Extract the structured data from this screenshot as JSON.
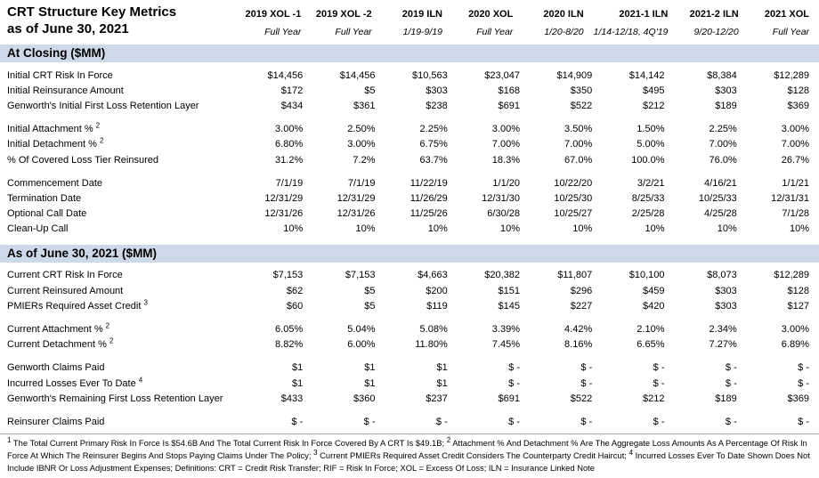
{
  "title": {
    "line1": "CRT Structure Key Metrics",
    "line2": "as of June 30, 2021"
  },
  "colors": {
    "section_band": "#cdd9e8"
  },
  "columns": [
    {
      "name": "2019 XOL -1",
      "period": "Full Year"
    },
    {
      "name": "2019 XOL -2",
      "period": "Full Year"
    },
    {
      "name": "2019 ILN",
      "period": "1/19-9/19"
    },
    {
      "name": "2020 XOL",
      "period": "Full Year"
    },
    {
      "name": "2020 ILN",
      "period": "1/20-8/20"
    },
    {
      "name": "2021-1 ILN",
      "period": "1/14-12/18, 4Q'19"
    },
    {
      "name": "2021-2 ILN",
      "period": "9/20-12/20"
    },
    {
      "name": "2021 XOL",
      "period": "Full Year"
    }
  ],
  "sections": [
    {
      "header": "At Closing ($MM)",
      "groups": [
        {
          "rows": [
            {
              "label": "Initial CRT Risk In Force",
              "sup": "",
              "values": [
                "$14,456",
                "$14,456",
                "$10,563",
                "$23,047",
                "$14,909",
                "$14,142",
                "$8,384",
                "$12,289"
              ]
            },
            {
              "label": "Initial Reinsurance Amount",
              "sup": "",
              "values": [
                "$172",
                "$5",
                "$303",
                "$168",
                "$350",
                "$495",
                "$303",
                "$128"
              ]
            },
            {
              "label": "Genworth's Initial First Loss Retention Layer",
              "sup": "",
              "values": [
                "$434",
                "$361",
                "$238",
                "$691",
                "$522",
                "$212",
                "$189",
                "$369"
              ]
            }
          ]
        },
        {
          "rows": [
            {
              "label": "Initial Attachment % ",
              "sup": "2",
              "values": [
                "3.00%",
                "2.50%",
                "2.25%",
                "3.00%",
                "3.50%",
                "1.50%",
                "2.25%",
                "3.00%"
              ]
            },
            {
              "label": "Initial Detachment % ",
              "sup": "2",
              "values": [
                "6.80%",
                "3.00%",
                "6.75%",
                "7.00%",
                "7.00%",
                "5.00%",
                "7.00%",
                "7.00%"
              ]
            },
            {
              "label": "% Of  Covered Loss Tier Reinsured",
              "sup": "",
              "values": [
                "31.2%",
                "7.2%",
                "63.7%",
                "18.3%",
                "67.0%",
                "100.0%",
                "76.0%",
                "26.7%"
              ]
            }
          ]
        },
        {
          "rows": [
            {
              "label": "Commencement Date",
              "sup": "",
              "values": [
                "7/1/19",
                "7/1/19",
                "11/22/19",
                "1/1/20",
                "10/22/20",
                "3/2/21",
                "4/16/21",
                "1/1/21"
              ]
            },
            {
              "label": "Termination Date",
              "sup": "",
              "values": [
                "12/31/29",
                "12/31/29",
                "11/26/29",
                "12/31/30",
                "10/25/30",
                "8/25/33",
                "10/25/33",
                "12/31/31"
              ]
            },
            {
              "label": "Optional Call Date",
              "sup": "",
              "values": [
                "12/31/26",
                "12/31/26",
                "11/25/26",
                "6/30/28",
                "10/25/27",
                "2/25/28",
                "4/25/28",
                "7/1/28"
              ]
            },
            {
              "label": "Clean-Up Call",
              "sup": "",
              "values": [
                "10%",
                "10%",
                "10%",
                "10%",
                "10%",
                "10%",
                "10%",
                "10%"
              ]
            }
          ]
        }
      ]
    },
    {
      "header": "As of June 30, 2021 ($MM)",
      "groups": [
        {
          "rows": [
            {
              "label": "Current CRT Risk In Force",
              "sup": "",
              "values": [
                "$7,153",
                "$7,153",
                "$4,663",
                "$20,382",
                "$11,807",
                "$10,100",
                "$8,073",
                "$12,289"
              ]
            },
            {
              "label": "Current Reinsured Amount",
              "sup": "",
              "values": [
                "$62",
                "$5",
                "$200",
                "$151",
                "$296",
                "$459",
                "$303",
                "$128"
              ]
            },
            {
              "label": "PMIERs Required Asset Credit ",
              "sup": "3",
              "values": [
                "$60",
                "$5",
                "$119",
                "$145",
                "$227",
                "$420",
                "$303",
                "$127"
              ]
            }
          ]
        },
        {
          "rows": [
            {
              "label": "Current Attachment % ",
              "sup": "2",
              "values": [
                "6.05%",
                "5.04%",
                "5.08%",
                "3.39%",
                "4.42%",
                "2.10%",
                "2.34%",
                "3.00%"
              ]
            },
            {
              "label": "Current Detachment % ",
              "sup": "2",
              "values": [
                "8.82%",
                "6.00%",
                "11.80%",
                "7.45%",
                "8.16%",
                "6.65%",
                "7.27%",
                "6.89%"
              ]
            }
          ]
        },
        {
          "rows": [
            {
              "label": "Genworth Claims Paid",
              "sup": "",
              "values": [
                "$1",
                "$1",
                "$1",
                "$ -",
                "$ -",
                "$ -",
                "$ -",
                "$ -"
              ]
            },
            {
              "label": "Incurred Losses Ever To Date ",
              "sup": "4",
              "values": [
                "$1",
                "$1",
                "$1",
                "$ -",
                "$ -",
                "$ -",
                "$ -",
                "$ -"
              ]
            },
            {
              "label": "Genworth's Remaining First Loss Retention Layer",
              "sup": "",
              "values": [
                "$433",
                "$360",
                "$237",
                "$691",
                "$522",
                "$212",
                "$189",
                "$369"
              ]
            }
          ]
        },
        {
          "rows": [
            {
              "label": "Reinsurer Claims Paid",
              "sup": "",
              "values": [
                "$ -",
                "$ -",
                "$ -",
                "$ -",
                "$ -",
                "$ -",
                "$ -",
                "$ -"
              ]
            }
          ]
        }
      ]
    }
  ],
  "footnote_segments": [
    {
      "sup": "1"
    },
    {
      "text": " The Total Current Primary Risk In Force Is $54.6B And The Total Current Risk In Force Covered By A CRT Is $49.1B; "
    },
    {
      "sup": "2"
    },
    {
      "text": " Attachment % And Detachment % Are The Aggregate Loss Amounts As A Percentage Of Risk In Force At Which The Reinsurer Begins And Stops Paying Claims Under The Policy; "
    },
    {
      "sup": "3"
    },
    {
      "text": " Current PMIERs Required Asset Credit Considers The Counterparty Credit Haircut; "
    },
    {
      "sup": "4"
    },
    {
      "text": " Incurred Losses Ever To Date Shown Does Not Include IBNR Or Loss Adjustment Expenses; Definitions: CRT = Credit Risk Transfer; RIF = Risk In Force; XOL = Excess Of Loss; ILN = Insurance Linked Note"
    }
  ]
}
